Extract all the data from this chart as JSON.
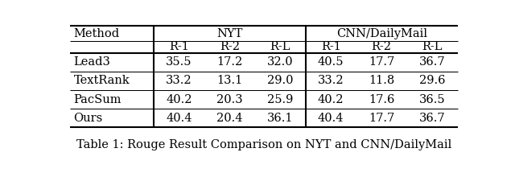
{
  "title": "Table 1: Rouge Result Comparison on NYT and CNN/DailyMail",
  "sub_headers": [
    "",
    "R-1",
    "R-2",
    "R-L",
    "R-1",
    "R-2",
    "R-L"
  ],
  "rows": [
    [
      "Lead3",
      "35.5",
      "17.2",
      "32.0",
      "40.5",
      "17.7",
      "36.7"
    ],
    [
      "TextRank",
      "33.2",
      "13.1",
      "29.0",
      "33.2",
      "11.8",
      "29.6"
    ],
    [
      "PacSum",
      "40.2",
      "20.3",
      "25.9",
      "40.2",
      "17.6",
      "36.5"
    ],
    [
      "Ours",
      "40.4",
      "20.4",
      "36.1",
      "40.4",
      "17.7",
      "36.7"
    ]
  ],
  "background": "#ffffff",
  "text_color": "#000000",
  "font_size": 10.5,
  "title_font_size": 10.5
}
